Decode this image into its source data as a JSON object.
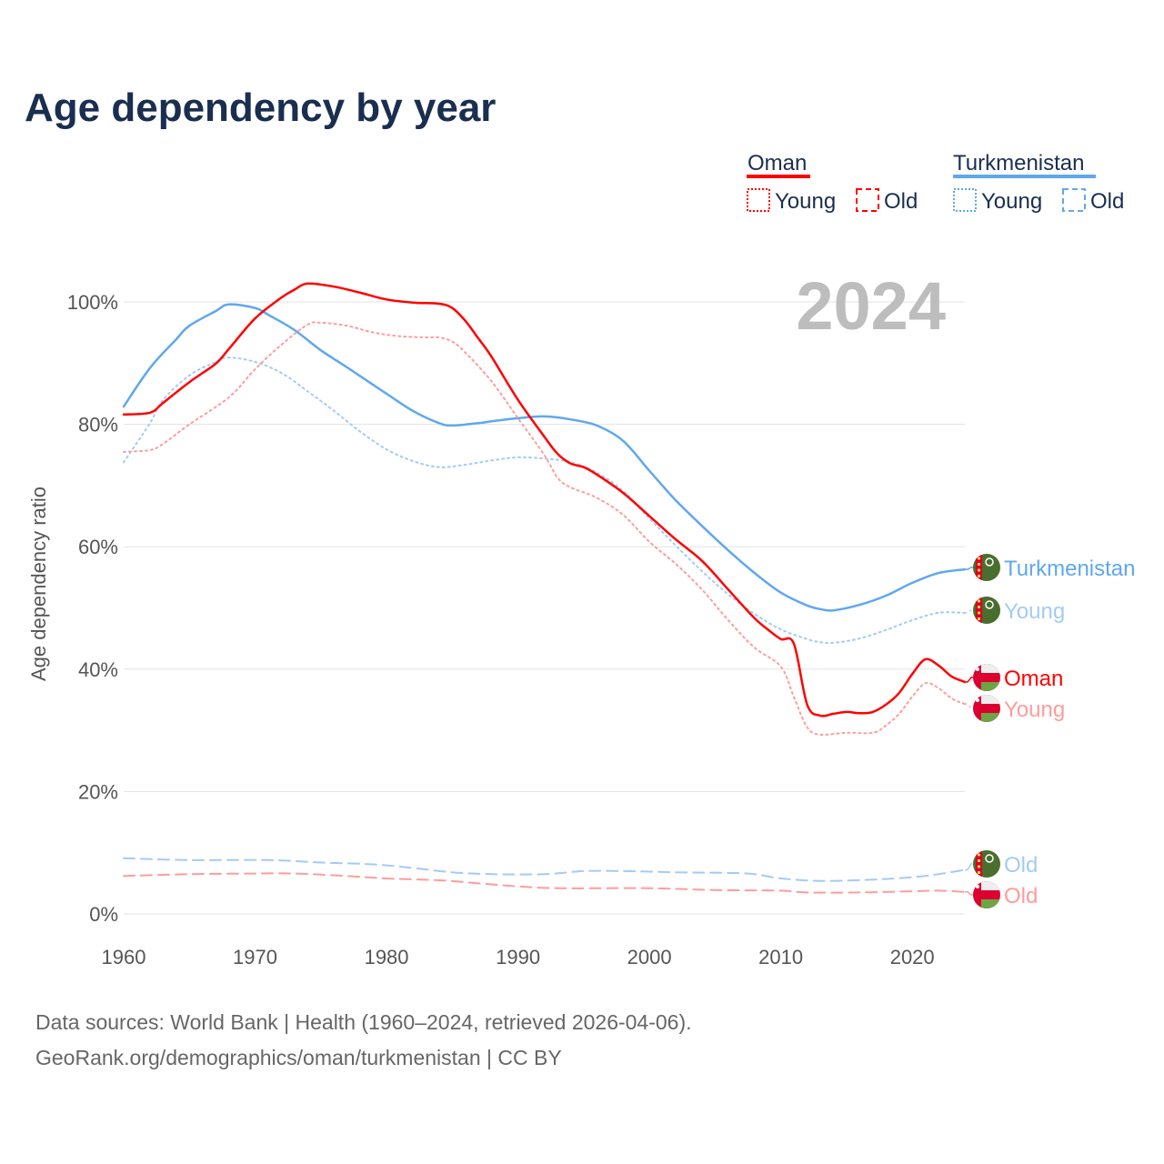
{
  "chart_data": {
    "type": "line",
    "title": "Age dependency by year",
    "xlabel": "",
    "ylabel": "Age dependency ratio",
    "xlim": [
      1960,
      2024
    ],
    "ylim": [
      0,
      100
    ],
    "x_ticks": [
      "1960",
      "1970",
      "1980",
      "1990",
      "2000",
      "2010",
      "2020"
    ],
    "y_ticks": [
      "0%",
      "20%",
      "40%",
      "60%",
      "80%",
      "100%"
    ],
    "grid": true,
    "year_overlay": "2024",
    "legend_position": "top-right",
    "legend": {
      "groups": [
        {
          "name": "Oman",
          "color": "#ff0000",
          "items": [
            "Young",
            "Old"
          ]
        },
        {
          "name": "Turkmenistan",
          "color": "#5fa8ee",
          "items": [
            "Young",
            "Old"
          ]
        }
      ]
    },
    "series": [
      {
        "name": "Turkmenistan",
        "label": "Turkmenistan",
        "country": "Turkmenistan",
        "kind": "total",
        "color": "#5fa8ee",
        "dash": "solid",
        "points": [
          [
            1960,
            82.9
          ],
          [
            1962,
            89.2
          ],
          [
            1964,
            93.9
          ],
          [
            1965,
            96.1
          ],
          [
            1967,
            98.5
          ],
          [
            1968,
            99.6
          ],
          [
            1970,
            99
          ],
          [
            1971,
            97.9
          ],
          [
            1973,
            95.4
          ],
          [
            1975,
            92.1
          ],
          [
            1977,
            89.3
          ],
          [
            1980,
            85
          ],
          [
            1982,
            82.2
          ],
          [
            1984,
            80.2
          ],
          [
            1985,
            79.8
          ],
          [
            1987,
            80.2
          ],
          [
            1988,
            80.5
          ],
          [
            1990,
            81
          ],
          [
            1992,
            81.3
          ],
          [
            1994,
            80.8
          ],
          [
            1996,
            79.8
          ],
          [
            1998,
            77.3
          ],
          [
            2000,
            72.4
          ],
          [
            2002,
            67.6
          ],
          [
            2004,
            63.4
          ],
          [
            2006,
            59.4
          ],
          [
            2008,
            55.7
          ],
          [
            2010,
            52.5
          ],
          [
            2012,
            50.4
          ],
          [
            2013,
            49.8
          ],
          [
            2014,
            49.6
          ],
          [
            2016,
            50.5
          ],
          [
            2018,
            52
          ],
          [
            2020,
            54.1
          ],
          [
            2022,
            55.7
          ],
          [
            2024,
            56.3
          ]
        ]
      },
      {
        "name": "Turkmenistan Young",
        "label": "Young",
        "country": "Turkmenistan",
        "kind": "young",
        "color": "#a3cbf4",
        "dash": "dotted",
        "points": [
          [
            1960,
            73.8
          ],
          [
            1962,
            80.2
          ],
          [
            1963,
            84
          ],
          [
            1965,
            88
          ],
          [
            1967,
            90.2
          ],
          [
            1968,
            90.9
          ],
          [
            1970,
            90.2
          ],
          [
            1972,
            88.4
          ],
          [
            1974,
            85.4
          ],
          [
            1976,
            82.2
          ],
          [
            1978,
            78.8
          ],
          [
            1980,
            75.9
          ],
          [
            1982,
            74
          ],
          [
            1984,
            73
          ],
          [
            1986,
            73.4
          ],
          [
            1988,
            74.1
          ],
          [
            1990,
            74.6
          ],
          [
            1992,
            74.4
          ],
          [
            1994,
            73.8
          ],
          [
            1996,
            72.1
          ],
          [
            1998,
            69.1
          ],
          [
            2000,
            64.6
          ],
          [
            2002,
            60.2
          ],
          [
            2004,
            56
          ],
          [
            2006,
            52.2
          ],
          [
            2008,
            49
          ],
          [
            2010,
            46.5
          ],
          [
            2012,
            44.9
          ],
          [
            2013,
            44.4
          ],
          [
            2014,
            44.3
          ],
          [
            2016,
            45
          ],
          [
            2018,
            46.4
          ],
          [
            2020,
            48
          ],
          [
            2022,
            49.2
          ],
          [
            2024,
            49.2
          ]
        ]
      },
      {
        "name": "Turkmenistan Old",
        "label": "Old",
        "country": "Turkmenistan",
        "kind": "old",
        "color": "#a3cbf4",
        "dash": "dashed",
        "points": [
          [
            1960,
            9.1
          ],
          [
            1965,
            8.8
          ],
          [
            1971,
            8.8
          ],
          [
            1975,
            8.4
          ],
          [
            1979,
            8.1
          ],
          [
            1982,
            7.5
          ],
          [
            1985,
            6.8
          ],
          [
            1988,
            6.5
          ],
          [
            1992,
            6.5
          ],
          [
            1995,
            7
          ],
          [
            1998,
            7
          ],
          [
            2002,
            6.8
          ],
          [
            2006,
            6.7
          ],
          [
            2008,
            6.5
          ],
          [
            2010,
            5.8
          ],
          [
            2013,
            5.4
          ],
          [
            2017,
            5.6
          ],
          [
            2020,
            6
          ],
          [
            2022,
            6.5
          ],
          [
            2024,
            7.2
          ]
        ]
      },
      {
        "name": "Oman",
        "label": "Oman",
        "country": "Oman",
        "kind": "total",
        "color": "#ff0000",
        "dash": "solid",
        "points": [
          [
            1960,
            81.6
          ],
          [
            1962,
            81.9
          ],
          [
            1963,
            83.5
          ],
          [
            1965,
            86.9
          ],
          [
            1967,
            89.9
          ],
          [
            1968,
            92.3
          ],
          [
            1970,
            97.3
          ],
          [
            1972,
            100.7
          ],
          [
            1973,
            102
          ],
          [
            1974,
            103
          ],
          [
            1976,
            102.5
          ],
          [
            1978,
            101.5
          ],
          [
            1980,
            100.4
          ],
          [
            1982,
            99.9
          ],
          [
            1984,
            99.7
          ],
          [
            1985,
            99
          ],
          [
            1986,
            96.9
          ],
          [
            1987,
            94
          ],
          [
            1988,
            91
          ],
          [
            1990,
            84
          ],
          [
            1992,
            78
          ],
          [
            1993,
            75.2
          ],
          [
            1994,
            73.6
          ],
          [
            1995,
            73
          ],
          [
            1996,
            71.8
          ],
          [
            1998,
            68.8
          ],
          [
            2000,
            65
          ],
          [
            2002,
            61.2
          ],
          [
            2004,
            57.7
          ],
          [
            2006,
            53
          ],
          [
            2008,
            48.3
          ],
          [
            2009,
            46.5
          ],
          [
            2010,
            44.9
          ],
          [
            2011,
            44.1
          ],
          [
            2012,
            34.2
          ],
          [
            2013,
            32.4
          ],
          [
            2014,
            32.7
          ],
          [
            2015,
            33
          ],
          [
            2016,
            32.8
          ],
          [
            2017,
            33
          ],
          [
            2018,
            34.2
          ],
          [
            2019,
            36.1
          ],
          [
            2020,
            39.2
          ],
          [
            2021,
            41.6
          ],
          [
            2022,
            40.6
          ],
          [
            2023,
            38.8
          ],
          [
            2024,
            37.9
          ]
        ]
      },
      {
        "name": "Oman Young",
        "label": "Young",
        "country": "Oman",
        "kind": "young",
        "color": "#ff9c9c",
        "dash": "dotted",
        "points": [
          [
            1960,
            75.5
          ],
          [
            1962,
            75.8
          ],
          [
            1963,
            76.8
          ],
          [
            1965,
            80
          ],
          [
            1968,
            84.4
          ],
          [
            1970,
            89
          ],
          [
            1972,
            93
          ],
          [
            1974,
            96.3
          ],
          [
            1975,
            96.6
          ],
          [
            1977,
            96.1
          ],
          [
            1979,
            95
          ],
          [
            1981,
            94.4
          ],
          [
            1983,
            94.2
          ],
          [
            1984,
            94.2
          ],
          [
            1985,
            93.5
          ],
          [
            1986,
            91.7
          ],
          [
            1988,
            87
          ],
          [
            1990,
            81
          ],
          [
            1992,
            75
          ],
          [
            1993,
            71.3
          ],
          [
            1994,
            69.7
          ],
          [
            1996,
            68
          ],
          [
            1998,
            65.2
          ],
          [
            2000,
            60.8
          ],
          [
            2002,
            57.2
          ],
          [
            2004,
            53
          ],
          [
            2006,
            48
          ],
          [
            2008,
            43.5
          ],
          [
            2010,
            40.4
          ],
          [
            2011,
            35.4
          ],
          [
            2012,
            30.5
          ],
          [
            2013,
            29.3
          ],
          [
            2015,
            29.6
          ],
          [
            2017,
            29.6
          ],
          [
            2018,
            30.8
          ],
          [
            2019,
            32.7
          ],
          [
            2020,
            35.5
          ],
          [
            2021,
            37.7
          ],
          [
            2022,
            36.9
          ],
          [
            2023,
            35.2
          ],
          [
            2024,
            34.3
          ]
        ]
      },
      {
        "name": "Oman Old",
        "label": "Old",
        "country": "Oman",
        "kind": "old",
        "color": "#ff9c9c",
        "dash": "dashed",
        "points": [
          [
            1960,
            6.2
          ],
          [
            1965,
            6.5
          ],
          [
            1970,
            6.6
          ],
          [
            1973,
            6.6
          ],
          [
            1977,
            6.2
          ],
          [
            1980,
            5.8
          ],
          [
            1984,
            5.5
          ],
          [
            1987,
            5
          ],
          [
            1990,
            4.5
          ],
          [
            1993,
            4.2
          ],
          [
            2000,
            4.2
          ],
          [
            2005,
            3.9
          ],
          [
            2010,
            3.8
          ],
          [
            2012,
            3.5
          ],
          [
            2016,
            3.5
          ],
          [
            2020,
            3.7
          ],
          [
            2022,
            3.8
          ],
          [
            2024,
            3.6
          ]
        ]
      }
    ],
    "source_lines": [
      "Data sources: World Bank | Health (1960–2024, retrieved 2026-04-06).",
      "GeoRank.org/demographics/oman/turkmenistan | CC BY"
    ]
  }
}
